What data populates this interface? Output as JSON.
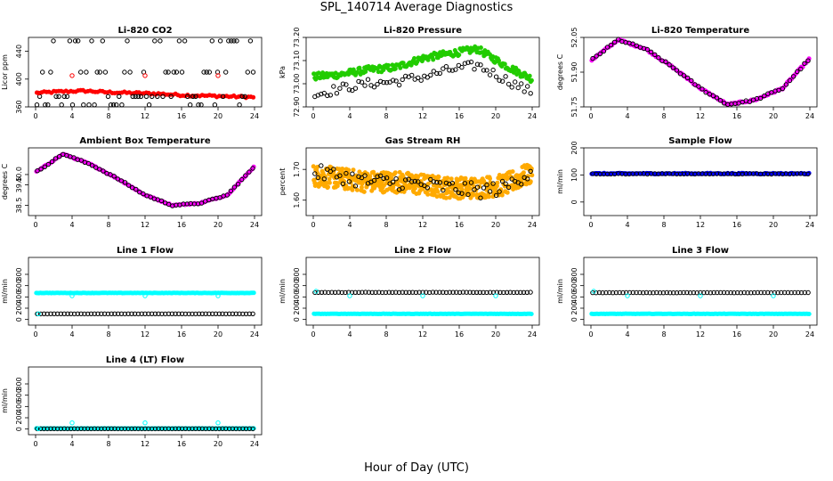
{
  "title": "SPL_140714  Average Diagnostics",
  "xlabel": "Hour of Day (UTC)",
  "colors": {
    "black": "#000000",
    "red": "#ff0000",
    "green": "#22cc00",
    "magenta": "#ff00ff",
    "orange": "#ffaa00",
    "blue": "#0000ff",
    "cyan": "#00ffff"
  },
  "chart_data": [
    {
      "type": "scatter",
      "title": "Li-820 CO2",
      "ylabel": "Licor ppm",
      "xlim": [
        0,
        24
      ],
      "ylim": [
        360,
        460
      ],
      "xticks": [
        "0",
        "4",
        "8",
        "12",
        "16",
        "20",
        "24"
      ],
      "yticks": [
        "360",
        "400",
        "440"
      ],
      "series": [
        {
          "color": "red",
          "style": "filled",
          "base": [
            380,
            382,
            383,
            381,
            380,
            379,
            377,
            376,
            375,
            374
          ],
          "jitter": 1.5,
          "n": 90
        },
        {
          "color": "black",
          "style": "open",
          "levels": [
            455,
            410,
            375,
            363
          ],
          "n": 80
        },
        {
          "color": "red",
          "style": "open-few",
          "points": [
            [
              0.3,
              380
            ],
            [
              4,
              405
            ],
            [
              12,
              405
            ],
            [
              20,
              405
            ]
          ]
        }
      ]
    },
    {
      "type": "scatter",
      "title": "Li-820 Pressure",
      "ylabel": "kPa",
      "xlim": [
        0,
        24
      ],
      "ylim": [
        72.9,
        73.2
      ],
      "xticks": [
        "0",
        "4",
        "8",
        "12",
        "16",
        "20",
        "24"
      ],
      "yticks": [
        "72.90",
        "73.00",
        "73.10",
        "73.20"
      ],
      "series": [
        {
          "color": "green",
          "style": "band",
          "base": [
            73.03,
            73.04,
            73.06,
            73.07,
            73.11,
            73.13,
            73.15,
            73.08,
            73.02
          ],
          "jitter": 0.015,
          "n": 220
        },
        {
          "color": "black",
          "style": "open",
          "base": [
            72.95,
            72.98,
            73.0,
            73.01,
            73.03,
            73.06,
            73.08,
            73.02,
            72.96
          ],
          "jitter": 0.02,
          "n": 70
        }
      ]
    },
    {
      "type": "scatter",
      "title": "Li-820 Temperature",
      "ylabel": "degrees C",
      "xlim": [
        0,
        24
      ],
      "ylim": [
        51.75,
        52.05
      ],
      "xticks": [
        "0",
        "4",
        "8",
        "12",
        "16",
        "20",
        "24"
      ],
      "yticks": [
        "51.75",
        "51.90",
        "52.05"
      ],
      "series": [
        {
          "color": "magenta",
          "style": "filled",
          "base": [
            51.95,
            52.04,
            52.0,
            51.92,
            51.83,
            51.76,
            51.78,
            51.83,
            51.96
          ],
          "jitter": 0.004,
          "n": 140
        },
        {
          "color": "black",
          "style": "open",
          "base": [
            51.95,
            52.04,
            52.0,
            51.92,
            51.83,
            51.76,
            51.78,
            51.83,
            51.96
          ],
          "jitter": 0.004,
          "n": 60
        }
      ]
    },
    {
      "type": "scatter",
      "title": "Ambient Box Temperature",
      "ylabel": "degrees C",
      "xlim": [
        0,
        24
      ],
      "ylim": [
        38,
        41.3
      ],
      "xticks": [
        "0",
        "4",
        "8",
        "12",
        "16",
        "20",
        "24"
      ],
      "yticks": [
        "38.5",
        "39.5",
        "40.0"
      ],
      "series": [
        {
          "color": "magenta",
          "style": "filled",
          "base": [
            40.1,
            41.0,
            40.5,
            39.8,
            39.0,
            38.5,
            38.6,
            39.0,
            40.4
          ],
          "jitter": 0.03,
          "n": 140
        },
        {
          "color": "black",
          "style": "open",
          "base": [
            40.1,
            41.0,
            40.5,
            39.8,
            39.0,
            38.5,
            38.6,
            39.0,
            40.4
          ],
          "jitter": 0.03,
          "n": 60
        }
      ]
    },
    {
      "type": "scatter",
      "title": "Gas Stream RH",
      "ylabel": "percent",
      "xlim": [
        0,
        24
      ],
      "ylim": [
        1.55,
        1.77
      ],
      "xticks": [
        "0",
        "4",
        "8",
        "12",
        "16",
        "20",
        "24"
      ],
      "yticks": [
        "1.60",
        "1.70"
      ],
      "series": [
        {
          "color": "orange",
          "style": "cloud",
          "base": [
            1.68,
            1.67,
            1.66,
            1.66,
            1.65,
            1.64,
            1.64,
            1.65,
            1.69
          ],
          "jitter": 0.035,
          "n": 500
        },
        {
          "color": "black",
          "style": "open",
          "base": [
            1.69,
            1.68,
            1.66,
            1.66,
            1.65,
            1.64,
            1.63,
            1.64,
            1.7
          ],
          "jitter": 0.025,
          "n": 70
        }
      ]
    },
    {
      "type": "scatter",
      "title": "Sample Flow",
      "ylabel": "ml/min",
      "xlim": [
        0,
        24
      ],
      "ylim": [
        -50,
        200
      ],
      "xticks": [
        "0",
        "4",
        "8",
        "12",
        "16",
        "20",
        "24"
      ],
      "yticks": [
        "0",
        "100",
        "200"
      ],
      "series": [
        {
          "color": "blue",
          "style": "filled",
          "base": [
            105
          ],
          "jitter": 2,
          "n": 140
        },
        {
          "color": "black",
          "style": "open",
          "base": [
            104
          ],
          "jitter": 1,
          "n": 60
        }
      ]
    },
    {
      "type": "scatter",
      "title": "Line 1 Flow",
      "ylabel": "ml/min",
      "xlim": [
        0,
        24
      ],
      "ylim": [
        -100,
        1100
      ],
      "xticks": [
        "0",
        "4",
        "8",
        "12",
        "16",
        "20",
        "24"
      ],
      "yticks": [
        "0",
        "200",
        "400",
        "600",
        "800"
      ],
      "series": [
        {
          "color": "cyan",
          "style": "filled",
          "base": [
            470
          ],
          "jitter": 3,
          "n": 160
        },
        {
          "color": "black",
          "style": "open",
          "base": [
            100
          ],
          "jitter": 1,
          "n": 65
        },
        {
          "color": "cyan",
          "style": "open-few",
          "points": [
            [
              0.3,
              100
            ],
            [
              4,
              420
            ],
            [
              12,
              420
            ],
            [
              20,
              420
            ]
          ]
        }
      ]
    },
    {
      "type": "scatter",
      "title": "Line 2 Flow",
      "ylabel": "ml/min",
      "xlim": [
        0,
        24
      ],
      "ylim": [
        -100,
        1100
      ],
      "xticks": [
        "0",
        "4",
        "8",
        "12",
        "16",
        "20",
        "24"
      ],
      "yticks": [
        "0",
        "200",
        "400",
        "600",
        "800"
      ],
      "series": [
        {
          "color": "cyan",
          "style": "filled",
          "base": [
            100
          ],
          "jitter": 3,
          "n": 160
        },
        {
          "color": "black",
          "style": "open",
          "base": [
            480
          ],
          "jitter": 2,
          "n": 65
        },
        {
          "color": "cyan",
          "style": "open-few",
          "points": [
            [
              0.3,
              500
            ],
            [
              4,
              420
            ],
            [
              12,
              420
            ],
            [
              20,
              420
            ]
          ]
        }
      ]
    },
    {
      "type": "scatter",
      "title": "Line 3 Flow",
      "ylabel": "ml/min",
      "xlim": [
        0,
        24
      ],
      "ylim": [
        -100,
        1100
      ],
      "xticks": [
        "0",
        "4",
        "8",
        "12",
        "16",
        "20",
        "24"
      ],
      "yticks": [
        "0",
        "200",
        "400",
        "600",
        "800"
      ],
      "series": [
        {
          "color": "cyan",
          "style": "filled",
          "base": [
            100
          ],
          "jitter": 3,
          "n": 160
        },
        {
          "color": "black",
          "style": "open",
          "base": [
            475
          ],
          "jitter": 2,
          "n": 65
        },
        {
          "color": "cyan",
          "style": "open-few",
          "points": [
            [
              0.3,
              500
            ],
            [
              4,
              420
            ],
            [
              12,
              420
            ],
            [
              20,
              420
            ]
          ]
        }
      ]
    },
    {
      "type": "scatter",
      "title": "Line 4 (LT) Flow",
      "ylabel": "ml/min",
      "xlim": [
        0,
        24
      ],
      "ylim": [
        -100,
        1100
      ],
      "xticks": [
        "0",
        "4",
        "8",
        "12",
        "16",
        "20",
        "24"
      ],
      "yticks": [
        "0",
        "200",
        "400",
        "600",
        "800"
      ],
      "series": [
        {
          "color": "cyan",
          "style": "filled",
          "base": [
            10
          ],
          "jitter": 2,
          "n": 160
        },
        {
          "color": "black",
          "style": "open",
          "base": [
            5
          ],
          "jitter": 1,
          "n": 65
        },
        {
          "color": "cyan",
          "style": "open-few",
          "points": [
            [
              0.3,
              5
            ],
            [
              4,
              110
            ],
            [
              12,
              110
            ],
            [
              20,
              110
            ]
          ]
        }
      ]
    }
  ]
}
